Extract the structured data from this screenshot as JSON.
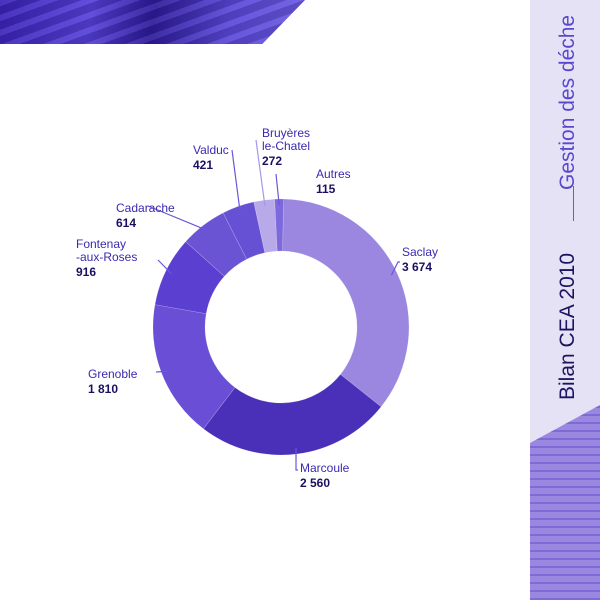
{
  "header": {
    "subtitle": "Gestion des déche",
    "title": "Bilan CEA 2010"
  },
  "colors": {
    "accent": "#5a48cc",
    "sidebar": "#e6e2f6",
    "label": "#3a2ab0",
    "value": "#1a1060"
  },
  "chart_data": {
    "type": "pie",
    "variant": "donut",
    "title": "",
    "categories": [
      "Saclay",
      "Marcoule",
      "Grenoble",
      "Fontenay -aux-Roses",
      "Cadarache",
      "Valduc",
      "Bruyères le-Chatel",
      "Autres"
    ],
    "label_lines": [
      [
        "Saclay"
      ],
      [
        "Marcoule"
      ],
      [
        "Grenoble"
      ],
      [
        "Fontenay",
        "-aux-Roses"
      ],
      [
        "Cadarache"
      ],
      [
        "Valduc"
      ],
      [
        "Bruyères",
        "le-Chatel"
      ],
      [
        "Autres"
      ]
    ],
    "values": [
      3674,
      2560,
      1810,
      916,
      614,
      421,
      272,
      115
    ],
    "value_labels": [
      "3 674",
      "2 560",
      "1 810",
      "916",
      "614",
      "421",
      "272",
      "115"
    ],
    "colors": [
      "#9b87e0",
      "#4a30b8",
      "#6a4fd6",
      "#5b3fd0",
      "#6b54d4",
      "#6650d4",
      "#b8aae8",
      "#7d68dc"
    ],
    "legend": "none"
  }
}
